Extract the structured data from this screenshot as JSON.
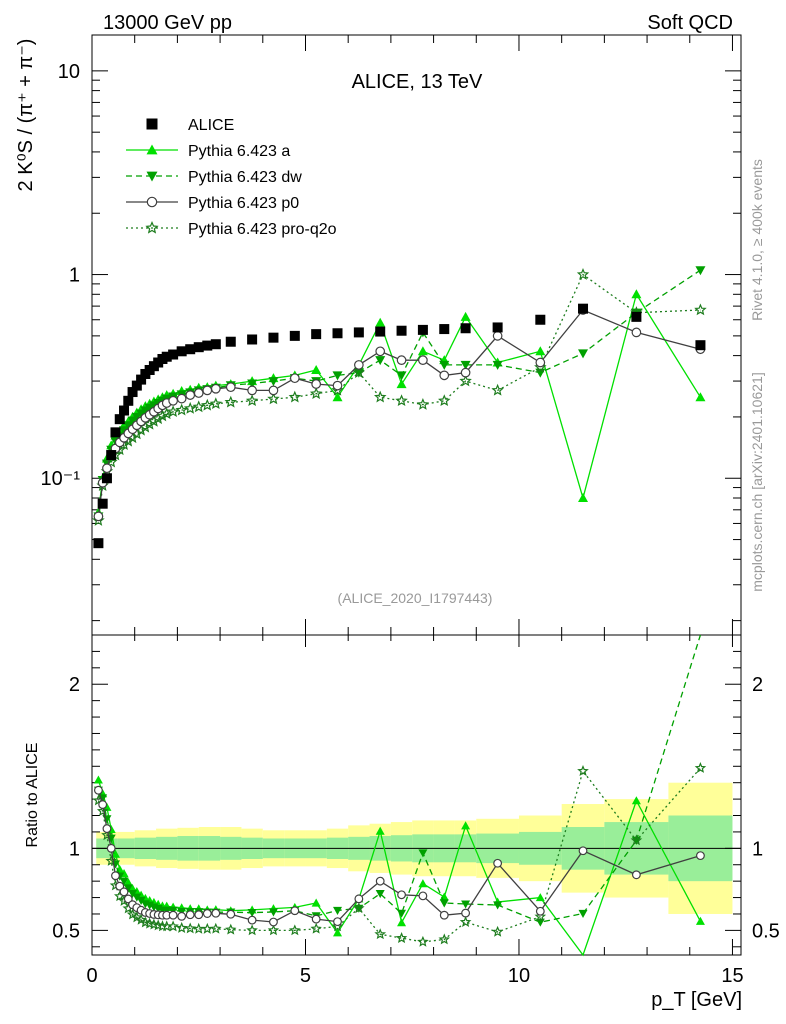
{
  "chart_data": {
    "type": "scatter",
    "header": {
      "left": "13000 GeV pp",
      "right": "Soft QCD"
    },
    "title": "ALICE, 13 TeV",
    "analysis_id": "(ALICE_2020_I1797443)",
    "side_labels": {
      "rivet": "Rivet 4.1.0, ≥ 400k events",
      "source": "mcplots.cern.ch [arXiv:2401.10621]"
    },
    "ylabel_main": "2 K⁰S / (π⁺ + π⁻)",
    "ylabel_ratio": "Ratio to ALICE",
    "xlabel": "p_T [GeV]",
    "xlim": [
      0,
      15.2
    ],
    "ylim_main_log": [
      0.017,
      15
    ],
    "ylim_ratio": [
      0.35,
      2.3
    ],
    "x_ticks": [
      0,
      5,
      10,
      15
    ],
    "x_tick_labels": [
      "0",
      "5",
      "10",
      "15"
    ],
    "y_main_ticks": [
      0.1,
      1,
      10
    ],
    "y_main_tick_labels": [
      "10⁻¹",
      "1",
      "10"
    ],
    "y_ratio_ticks": [
      0.5,
      1,
      2
    ],
    "y_ratio_tick_labels": [
      "0.5",
      "1",
      "2"
    ],
    "x": [
      0.15,
      0.25,
      0.35,
      0.45,
      0.55,
      0.65,
      0.75,
      0.85,
      0.95,
      1.05,
      1.15,
      1.25,
      1.35,
      1.45,
      1.55,
      1.65,
      1.75,
      1.9,
      2.1,
      2.3,
      2.5,
      2.7,
      2.9,
      3.25,
      3.75,
      4.25,
      4.75,
      5.25,
      5.75,
      6.25,
      6.75,
      7.25,
      7.75,
      8.25,
      8.75,
      9.5,
      10.5,
      11.5,
      12.75,
      14.25
    ],
    "series": [
      {
        "name": "ALICE",
        "color": "#000000",
        "marker": "square",
        "line": "none",
        "values": [
          0.048,
          0.075,
          0.1,
          0.13,
          0.168,
          0.195,
          0.215,
          0.24,
          0.265,
          0.285,
          0.305,
          0.325,
          0.34,
          0.355,
          0.37,
          0.385,
          0.395,
          0.405,
          0.42,
          0.43,
          0.44,
          0.448,
          0.455,
          0.468,
          0.48,
          0.49,
          0.5,
          0.51,
          0.515,
          0.52,
          0.525,
          0.53,
          0.535,
          0.54,
          0.545,
          0.55,
          0.6,
          0.68,
          0.62,
          0.45
        ]
      },
      {
        "name": "Pythia 6.423 a",
        "color": "#00e000",
        "marker": "triangle-up",
        "line": "solid",
        "values": [
          0.068,
          0.1,
          0.125,
          0.145,
          0.162,
          0.17,
          0.182,
          0.19,
          0.2,
          0.21,
          0.218,
          0.226,
          0.232,
          0.238,
          0.244,
          0.25,
          0.256,
          0.26,
          0.268,
          0.272,
          0.278,
          0.28,
          0.285,
          0.29,
          0.3,
          0.31,
          0.32,
          0.34,
          0.25,
          0.36,
          0.58,
          0.29,
          0.42,
          0.38,
          0.62,
          0.37,
          0.42,
          0.08,
          0.8,
          0.25
        ]
      },
      {
        "name": "Pythia 6.423 dw",
        "color": "#00a000",
        "marker": "triangle-down",
        "line": "dashed",
        "values": [
          0.065,
          0.098,
          0.118,
          0.138,
          0.152,
          0.162,
          0.172,
          0.182,
          0.192,
          0.2,
          0.208,
          0.215,
          0.222,
          0.228,
          0.234,
          0.24,
          0.246,
          0.252,
          0.258,
          0.264,
          0.27,
          0.274,
          0.278,
          0.286,
          0.292,
          0.3,
          0.31,
          0.3,
          0.32,
          0.33,
          0.38,
          0.32,
          0.52,
          0.36,
          0.36,
          0.36,
          0.33,
          0.41,
          0.65,
          1.05
        ]
      },
      {
        "name": "Pythia 6.423 p0",
        "color": "#404040",
        "marker": "circle-open",
        "line": "solid",
        "values": [
          0.065,
          0.095,
          0.112,
          0.13,
          0.14,
          0.15,
          0.158,
          0.166,
          0.174,
          0.182,
          0.19,
          0.198,
          0.205,
          0.212,
          0.22,
          0.228,
          0.234,
          0.24,
          0.246,
          0.256,
          0.262,
          0.27,
          0.275,
          0.28,
          0.27,
          0.27,
          0.31,
          0.29,
          0.285,
          0.36,
          0.42,
          0.38,
          0.38,
          0.32,
          0.33,
          0.5,
          0.37,
          0.67,
          0.52,
          0.43
        ]
      },
      {
        "name": "Pythia 6.423 pro-q2o",
        "color": "#1e7d1e",
        "marker": "star",
        "line": "dotted",
        "values": [
          0.062,
          0.092,
          0.108,
          0.12,
          0.13,
          0.138,
          0.146,
          0.152,
          0.158,
          0.165,
          0.172,
          0.178,
          0.184,
          0.19,
          0.196,
          0.202,
          0.207,
          0.212,
          0.216,
          0.22,
          0.224,
          0.228,
          0.232,
          0.236,
          0.24,
          0.245,
          0.25,
          0.26,
          0.27,
          0.33,
          0.25,
          0.24,
          0.23,
          0.24,
          0.3,
          0.27,
          0.35,
          1.0,
          0.65,
          0.67
        ]
      }
    ],
    "ratio_bands": [
      {
        "x_from": 0.1,
        "x_to": 0.6,
        "green": 0.06,
        "yellow": 0.1
      },
      {
        "x_from": 0.6,
        "x_to": 1.0,
        "green": 0.06,
        "yellow": 0.1
      },
      {
        "x_from": 1.0,
        "x_to": 1.5,
        "green": 0.065,
        "yellow": 0.11
      },
      {
        "x_from": 1.5,
        "x_to": 2.0,
        "green": 0.07,
        "yellow": 0.12
      },
      {
        "x_from": 2.0,
        "x_to": 2.5,
        "green": 0.075,
        "yellow": 0.125
      },
      {
        "x_from": 2.5,
        "x_to": 3.0,
        "green": 0.075,
        "yellow": 0.13
      },
      {
        "x_from": 3.0,
        "x_to": 3.5,
        "green": 0.07,
        "yellow": 0.13
      },
      {
        "x_from": 3.5,
        "x_to": 4.0,
        "green": 0.065,
        "yellow": 0.12
      },
      {
        "x_from": 4.0,
        "x_to": 4.5,
        "green": 0.06,
        "yellow": 0.11
      },
      {
        "x_from": 4.5,
        "x_to": 5.0,
        "green": 0.06,
        "yellow": 0.11
      },
      {
        "x_from": 5.0,
        "x_to": 5.5,
        "green": 0.06,
        "yellow": 0.11
      },
      {
        "x_from": 5.5,
        "x_to": 6.0,
        "green": 0.065,
        "yellow": 0.12
      },
      {
        "x_from": 6.0,
        "x_to": 6.5,
        "green": 0.07,
        "yellow": 0.14
      },
      {
        "x_from": 6.5,
        "x_to": 7.0,
        "green": 0.075,
        "yellow": 0.15
      },
      {
        "x_from": 7.0,
        "x_to": 7.5,
        "green": 0.08,
        "yellow": 0.16
      },
      {
        "x_from": 7.5,
        "x_to": 8.0,
        "green": 0.085,
        "yellow": 0.17
      },
      {
        "x_from": 8.0,
        "x_to": 8.5,
        "green": 0.085,
        "yellow": 0.17
      },
      {
        "x_from": 8.5,
        "x_to": 9.0,
        "green": 0.085,
        "yellow": 0.17
      },
      {
        "x_from": 9.0,
        "x_to": 10.0,
        "green": 0.09,
        "yellow": 0.18
      },
      {
        "x_from": 10.0,
        "x_to": 11.0,
        "green": 0.1,
        "yellow": 0.2
      },
      {
        "x_from": 11.0,
        "x_to": 12.0,
        "green": 0.13,
        "yellow": 0.27
      },
      {
        "x_from": 12.0,
        "x_to": 13.5,
        "green": 0.16,
        "yellow": 0.3
      },
      {
        "x_from": 13.5,
        "x_to": 15.0,
        "green": 0.2,
        "yellow": 0.4
      }
    ]
  }
}
